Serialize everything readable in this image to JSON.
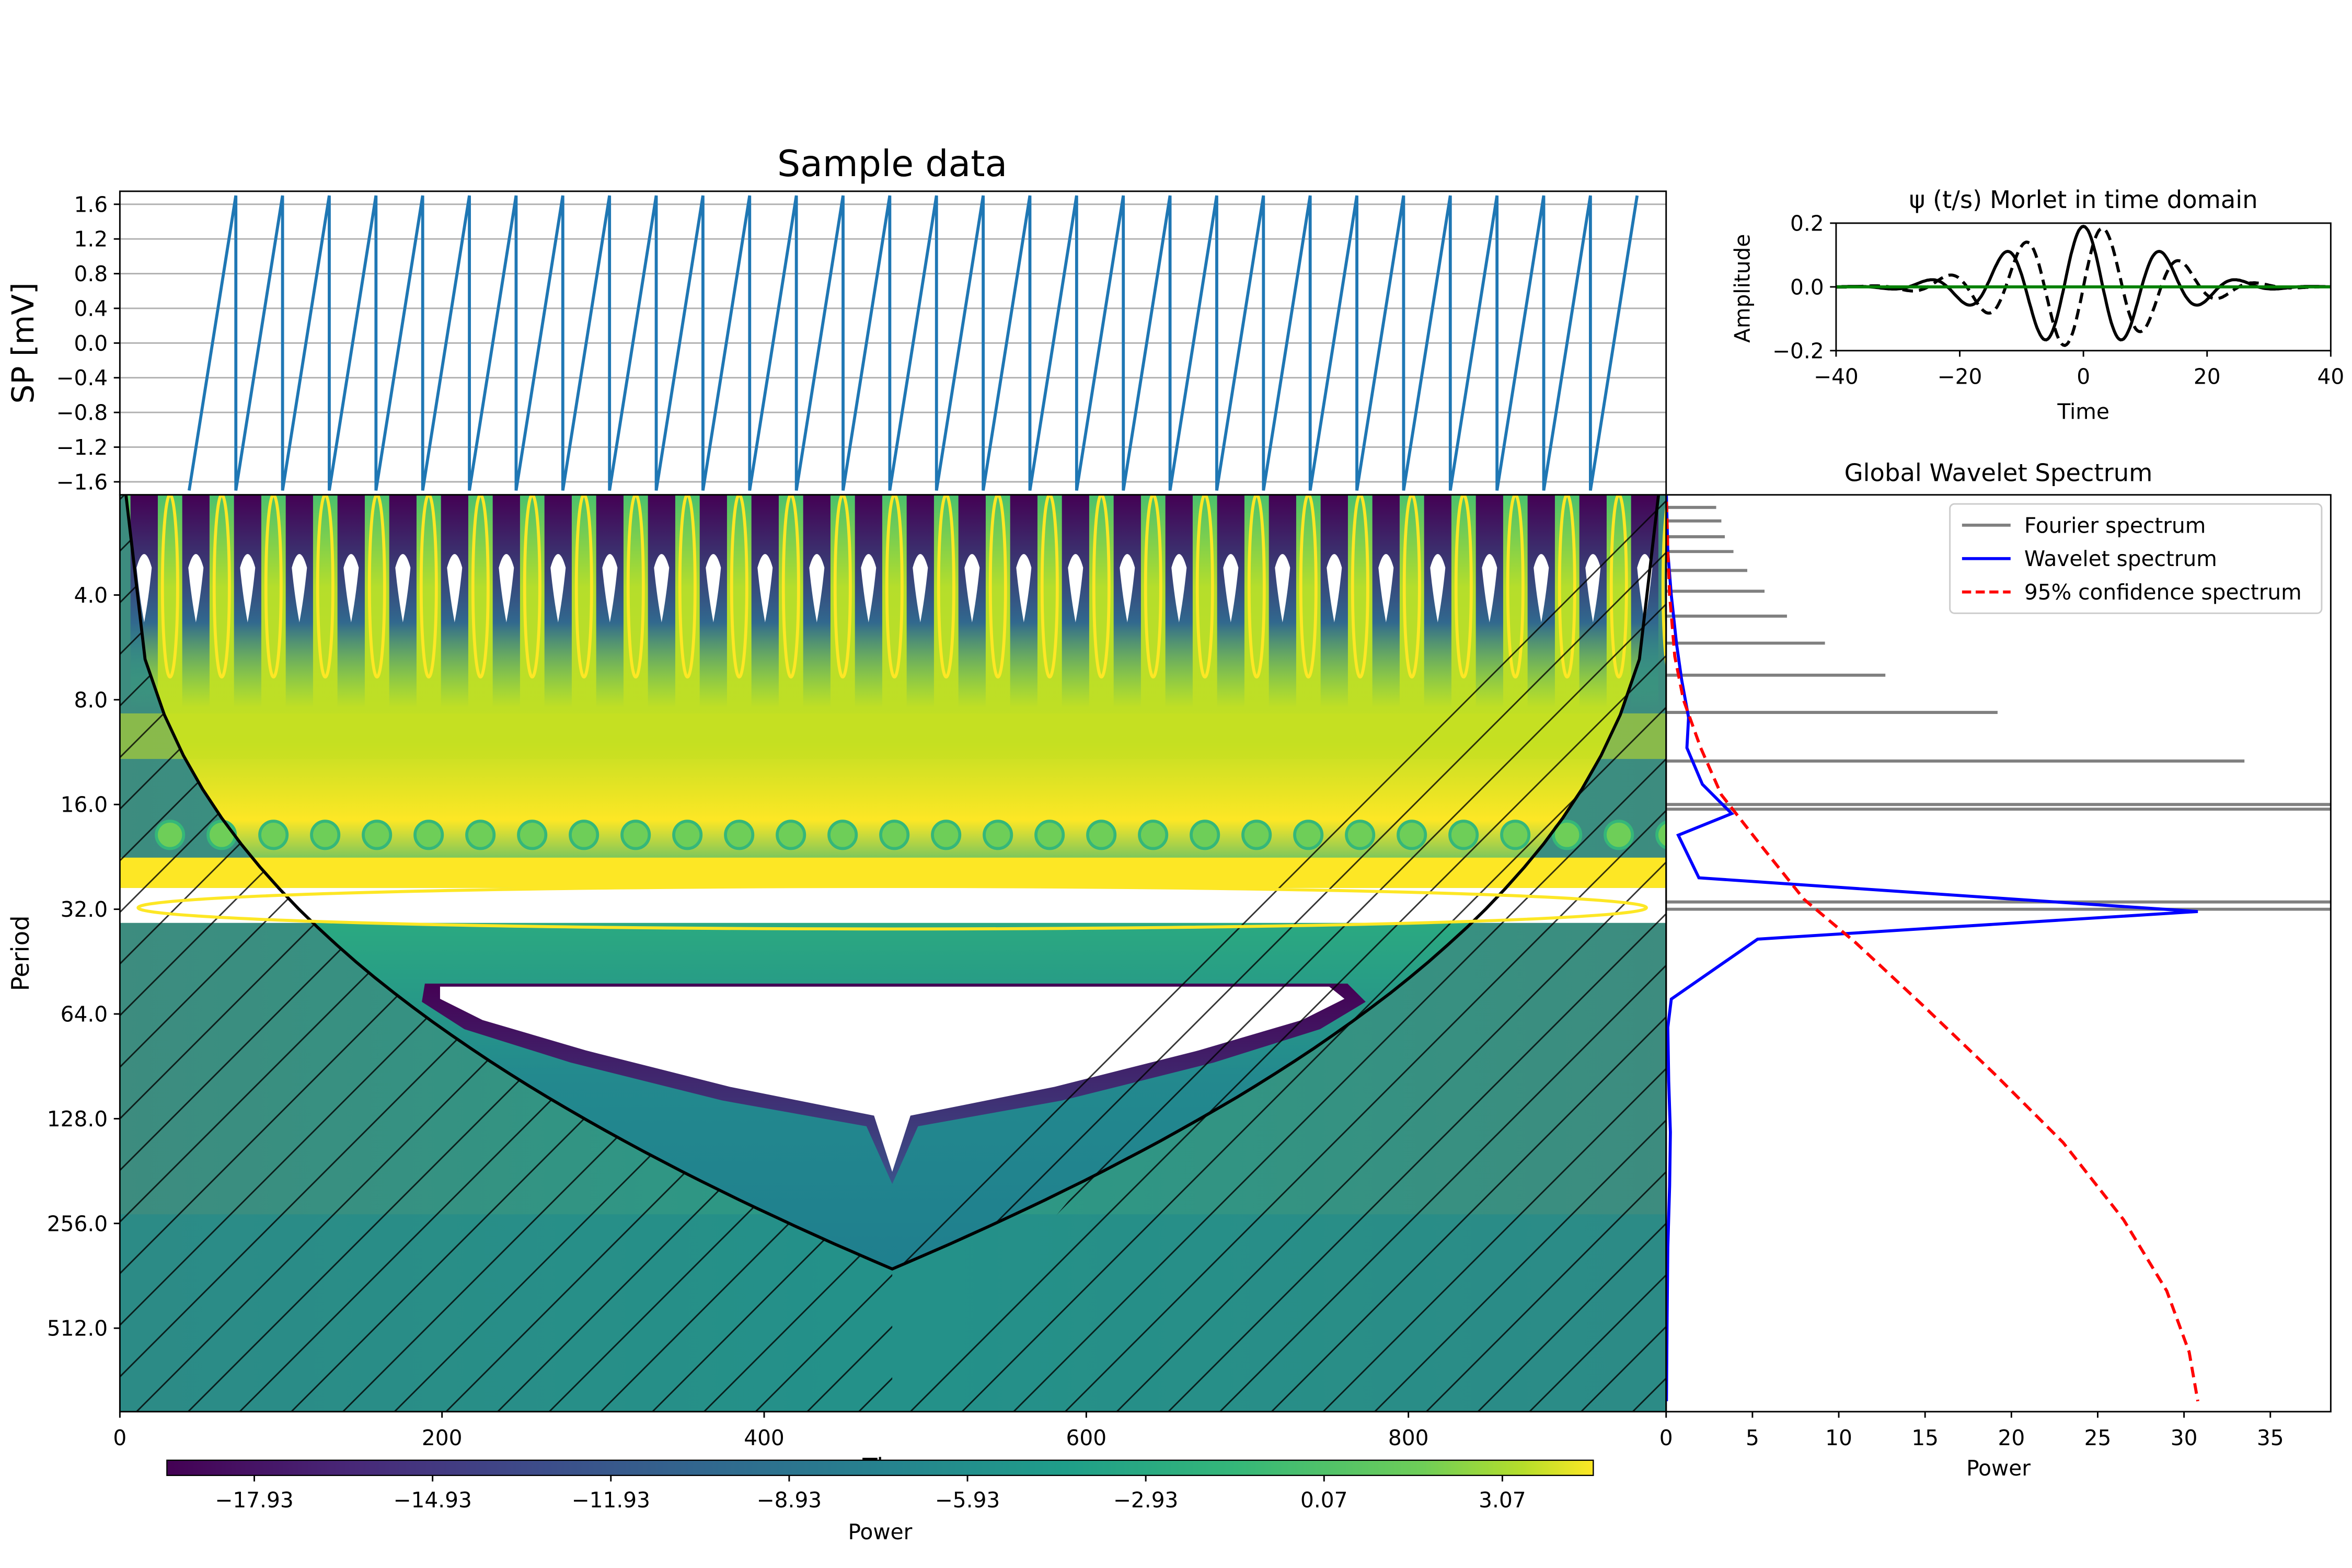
{
  "chart_data": [
    {
      "id": "sample",
      "type": "line",
      "title": "Sample data",
      "xlabel": "",
      "ylabel": "SP [mV]",
      "xlim": [
        0,
        960
      ],
      "ylim": [
        -1.75,
        1.75
      ],
      "yticks": [
        1.6,
        1.2,
        0.8,
        0.4,
        0.0,
        -0.4,
        -0.8,
        -1.2,
        -1.6
      ],
      "ytick_labels": [
        "1.6",
        "1.2",
        "0.8",
        "0.4",
        "0.0",
        "−0.4",
        "−0.8",
        "−1.2",
        "−1.6"
      ],
      "grid": true,
      "color": "#1f77b4",
      "sawtooth": {
        "start_x": 43,
        "end_x": 913,
        "period": 29,
        "min": -1.7,
        "max": 1.7
      }
    },
    {
      "id": "wavelet",
      "type": "heatmap",
      "title": "",
      "xlabel": "Time",
      "ylabel": "Period",
      "xlim": [
        0,
        960
      ],
      "xticks": [
        0,
        200,
        400,
        600,
        800
      ],
      "xtick_labels": [
        "0",
        "200",
        "400",
        "600",
        "800"
      ],
      "yticks": [
        4,
        8,
        16,
        32,
        64,
        128,
        256,
        512
      ],
      "ytick_labels": [
        "4.0",
        "8.0",
        "16.0",
        "32.0",
        "64.0",
        "128.0",
        "256.0",
        "512.0"
      ],
      "log_scale_y": true,
      "colorbar": {
        "label": "Power",
        "ticks": [
          -17.93,
          -14.93,
          -11.93,
          -8.93,
          -5.93,
          -2.93,
          0.07,
          3.07
        ],
        "tick_labels": [
          "−17.93",
          "−14.93",
          "−11.93",
          "−8.93",
          "−5.93",
          "−2.93",
          "0.07",
          "3.07"
        ],
        "min": -19.4,
        "max": 4.6
      }
    },
    {
      "id": "morlet",
      "type": "line",
      "title": "ψ (t/s) Morlet in time domain",
      "xlabel": "Time",
      "ylabel": "Amplitude",
      "xlim": [
        -40,
        40
      ],
      "ylim": [
        -0.2,
        0.2
      ],
      "xticks": [
        -40,
        -20,
        0,
        20,
        40
      ],
      "xtick_labels": [
        "−40",
        "−20",
        "0",
        "20",
        "40"
      ],
      "yticks": [
        0.2,
        0.0,
        -0.2
      ],
      "ytick_labels": [
        "0.2",
        "0.0",
        "−0.2"
      ],
      "series": [
        {
          "name": "",
          "style": "solid",
          "color": "#000000"
        },
        {
          "name": "",
          "style": "dashed",
          "color": "#000000"
        },
        {
          "name": "",
          "style": "solid",
          "color": "#008000"
        }
      ]
    },
    {
      "id": "global",
      "type": "line",
      "title": "Global Wavelet Spectrum",
      "xlabel": "Power",
      "ylabel": "",
      "xlim": [
        0,
        38.5
      ],
      "xticks": [
        0,
        5,
        10,
        15,
        20,
        25,
        30,
        35
      ],
      "xtick_labels": [
        "0",
        "5",
        "10",
        "15",
        "20",
        "25",
        "30",
        "35"
      ],
      "legend": [
        "Fourier spectrum",
        "Wavelet spectrum",
        "95% confidence spectrum"
      ],
      "legend_position": "top-right",
      "series": [
        {
          "name": "Fourier spectrum",
          "color": "#808080",
          "points": [
            [
              2.8,
              2.05
            ],
            [
              2.9,
              2.24
            ],
            [
              3.2,
              2.45
            ],
            [
              3.4,
              2.72
            ],
            [
              3.9,
              3.0
            ],
            [
              4.7,
              3.4
            ],
            [
              5.7,
              3.9
            ],
            [
              7.0,
              4.6
            ],
            [
              9.2,
              5.5
            ],
            [
              12.7,
              6.8
            ],
            [
              19.2,
              8.7
            ],
            [
              33.5,
              12.0
            ],
            [
              38.5,
              16.0
            ],
            [
              38.5,
              16.5
            ],
            [
              38.5,
              30.5
            ],
            [
              38.5,
              32.0
            ]
          ]
        },
        {
          "name": "Wavelet spectrum",
          "color": "#0000ff",
          "points": [
            [
              0,
              1.93
            ],
            [
              0.1,
              3.0
            ],
            [
              0.3,
              4.0
            ],
            [
              0.6,
              5.5
            ],
            [
              0.9,
              7.0
            ],
            [
              1.3,
              9.0
            ],
            [
              1.2,
              11.0
            ],
            [
              2.1,
              14.0
            ],
            [
              3.8,
              17.0
            ],
            [
              0.7,
              19.6
            ],
            [
              1.9,
              26.0
            ],
            [
              16.0,
              29.0
            ],
            [
              30.8,
              32.5
            ],
            [
              5.3,
              39.0
            ],
            [
              0.3,
              58.0
            ],
            [
              0.1,
              70
            ],
            [
              0.15,
              100
            ],
            [
              0.25,
              140
            ],
            [
              0.2,
              200
            ],
            [
              0.1,
              300
            ],
            [
              0.05,
              500
            ],
            [
              0.02,
              830
            ]
          ]
        },
        {
          "name": "95% confidence spectrum",
          "color": "#ff0000",
          "points": [
            [
              0,
              1.93
            ],
            [
              0.1,
              3.0
            ],
            [
              0.2,
              4.0
            ],
            [
              0.5,
              6.0
            ],
            [
              1.0,
              8.0
            ],
            [
              2.0,
              11.0
            ],
            [
              3.2,
              15.0
            ],
            [
              5.5,
              21.0
            ],
            [
              8.0,
              30.0
            ],
            [
              11.0,
              40.0
            ],
            [
              14.8,
              60.0
            ],
            [
              19.0,
              95.0
            ],
            [
              23.0,
              150.0
            ],
            [
              26.5,
              250.0
            ],
            [
              29.0,
              400.0
            ],
            [
              30.3,
              600.0
            ],
            [
              30.8,
              830.0
            ]
          ]
        }
      ]
    }
  ]
}
